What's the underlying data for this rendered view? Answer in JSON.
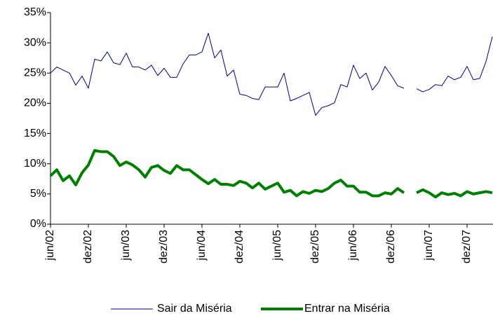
{
  "chart_data": {
    "type": "line",
    "categories": [
      "jun/02",
      null,
      null,
      null,
      null,
      null,
      "dez/02",
      null,
      null,
      null,
      null,
      null,
      "jun/03",
      null,
      null,
      null,
      null,
      null,
      "dez/03",
      null,
      null,
      null,
      null,
      null,
      "jun/04",
      null,
      null,
      null,
      null,
      null,
      "dez/04",
      null,
      null,
      null,
      null,
      null,
      "jun/05",
      null,
      null,
      null,
      null,
      null,
      "dez/05",
      null,
      null,
      null,
      null,
      null,
      "jun/06",
      null,
      null,
      null,
      null,
      null,
      "dez/06",
      null,
      null,
      null,
      null,
      null,
      "jun/07",
      null,
      null,
      null,
      null,
      null,
      "dez/07",
      null,
      null,
      null,
      null
    ],
    "series": [
      {
        "name": "Sair da Miséria",
        "color": "#000080",
        "width": 1,
        "values": [
          25,
          26,
          25.5,
          25,
          23,
          24.5,
          22.5,
          27.3,
          27,
          28.5,
          26.7,
          26.4,
          28.3,
          26,
          26,
          25.5,
          26.3,
          24.6,
          25.8,
          24.3,
          24.3,
          26.5,
          28,
          28,
          28.5,
          31.6,
          27.5,
          28.8,
          24.5,
          25.5,
          21.5,
          21.3,
          20.8,
          20.6,
          22.7,
          22.7,
          22.7,
          25,
          20.4,
          20.8,
          21.3,
          21.8,
          18,
          19.3,
          19.6,
          20.1,
          23.1,
          22.7,
          26.3,
          24.1,
          25,
          22.2,
          23.5,
          26.1,
          24.6,
          22.9,
          22.5,
          null,
          22.4,
          21.9,
          22.3,
          23.1,
          22.9,
          24.5,
          23.9,
          24.3,
          26.1,
          23.9,
          24.1,
          26.9,
          31
        ]
      },
      {
        "name": "Entrar na Miséria",
        "color": "#008000",
        "width": 4,
        "values": [
          8,
          9,
          7.2,
          8,
          6.5,
          8.5,
          9.8,
          12.2,
          12,
          12,
          11.2,
          9.7,
          10.3,
          9.8,
          9,
          7.8,
          9.4,
          9.7,
          8.9,
          8.4,
          9.7,
          9,
          9,
          8.2,
          7.4,
          6.7,
          7.4,
          6.6,
          6.6,
          6.4,
          7.1,
          6.8,
          6,
          6.8,
          5.8,
          6.3,
          6.8,
          5.3,
          5.6,
          4.7,
          5.4,
          5.1,
          5.6,
          5.4,
          5.9,
          6.8,
          7.3,
          6.3,
          6.3,
          5.3,
          5.3,
          4.7,
          4.7,
          5.2,
          5,
          5.9,
          5.2,
          null,
          5.2,
          5.7,
          5.2,
          4.5,
          5.2,
          4.9,
          5.1,
          4.7,
          5.4,
          5,
          5.2,
          5.4,
          5.2
        ]
      }
    ],
    "ylim": [
      0,
      35
    ],
    "yticks": [
      {
        "value": 0,
        "label": "0%"
      },
      {
        "value": 5,
        "label": "5%"
      },
      {
        "value": 10,
        "label": "10%"
      },
      {
        "value": 15,
        "label": "15%"
      },
      {
        "value": 20,
        "label": "20%"
      },
      {
        "value": 25,
        "label": "25%"
      },
      {
        "value": 30,
        "label": "30%"
      },
      {
        "value": 35,
        "label": "35%"
      }
    ],
    "grid": false,
    "legend": "bottom"
  }
}
